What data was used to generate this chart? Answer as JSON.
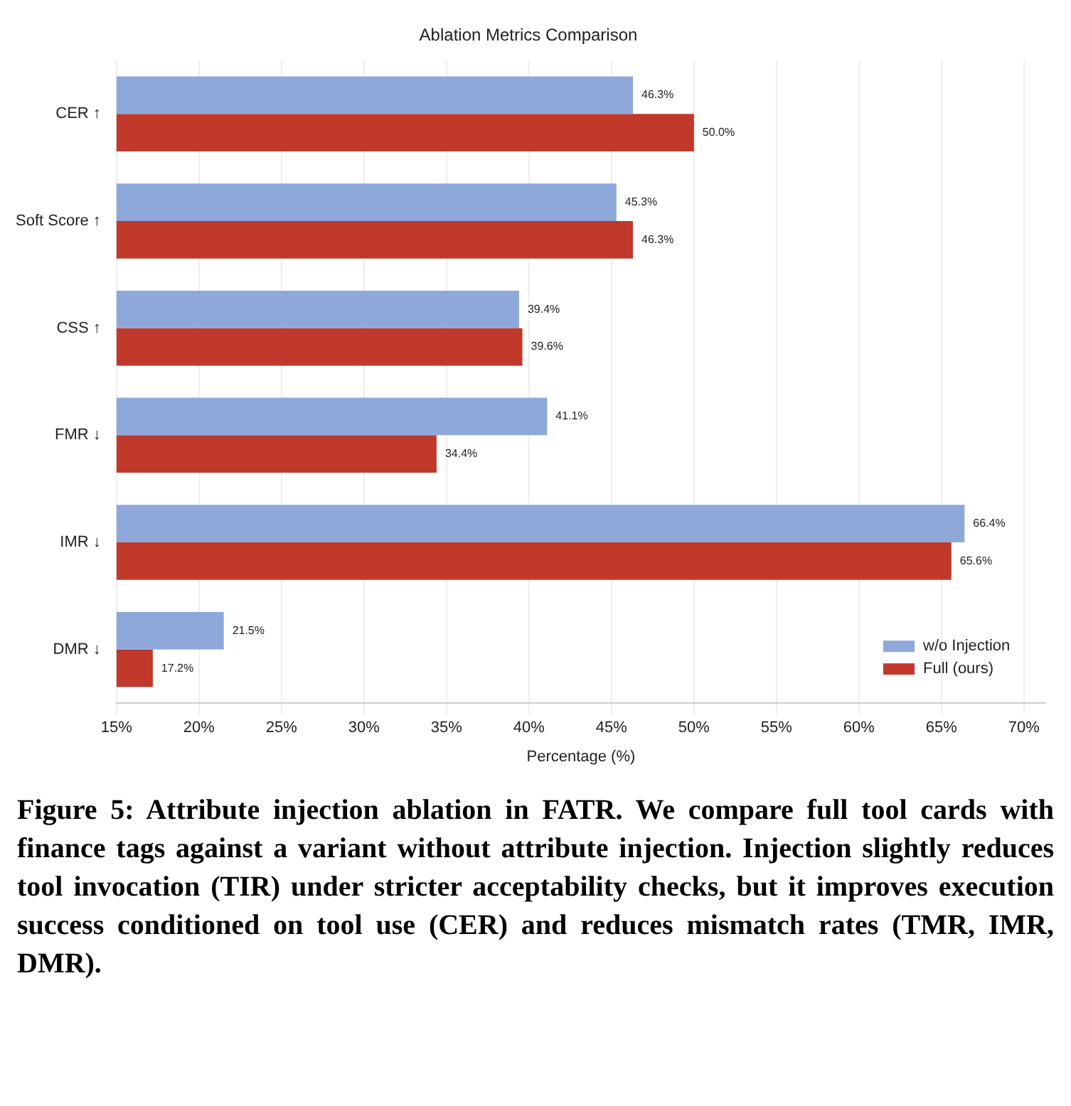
{
  "chart_data": {
    "type": "bar",
    "orientation": "horizontal",
    "title": "Ablation Metrics Comparison",
    "xlabel": "Percentage (%)",
    "categories": [
      "CER ↑",
      "Soft Score ↑",
      "CSS ↑",
      "FMR ↓",
      "IMR ↓",
      "DMR ↓"
    ],
    "series": [
      {
        "name": "w/o Injection",
        "color": "#8fa8da",
        "values": [
          46.3,
          45.3,
          39.4,
          41.1,
          66.4,
          21.5
        ],
        "value_labels": [
          "46.3%",
          "45.3%",
          "39.4%",
          "41.1%",
          "66.4%",
          "21.5%"
        ]
      },
      {
        "name": "Full (ours)",
        "color": "#c0392b",
        "values": [
          50.0,
          46.3,
          39.6,
          34.4,
          65.6,
          17.2
        ],
        "value_labels": [
          "50.0%",
          "46.3%",
          "39.6%",
          "34.4%",
          "65.6%",
          "17.2%"
        ]
      }
    ],
    "xlim": [
      15,
      71.3
    ],
    "xticks": [
      {
        "value": 15,
        "label": "15%"
      },
      {
        "value": 20,
        "label": "20%"
      },
      {
        "value": 25,
        "label": "25%"
      },
      {
        "value": 30,
        "label": "30%"
      },
      {
        "value": 35,
        "label": "35%"
      },
      {
        "value": 40,
        "label": "40%"
      },
      {
        "value": 45,
        "label": "45%"
      },
      {
        "value": 50,
        "label": "50%"
      },
      {
        "value": 55,
        "label": "55%"
      },
      {
        "value": 60,
        "label": "60%"
      },
      {
        "value": 65,
        "label": "65%"
      },
      {
        "value": 70,
        "label": "70%"
      }
    ],
    "grid": "x",
    "legend": "bottom right",
    "annotations": [
      "Figure 5: Attribute injection ablation in FATR. We compare full tool cards with finance tags against a variant without attribute injection. Injection slightly reduces tool invocation (TIR) under stricter acceptability checks, but it improves execution success conditioned on tool use (CER) and reduces mismatch rates (TMR, IMR, DMR)."
    ]
  }
}
